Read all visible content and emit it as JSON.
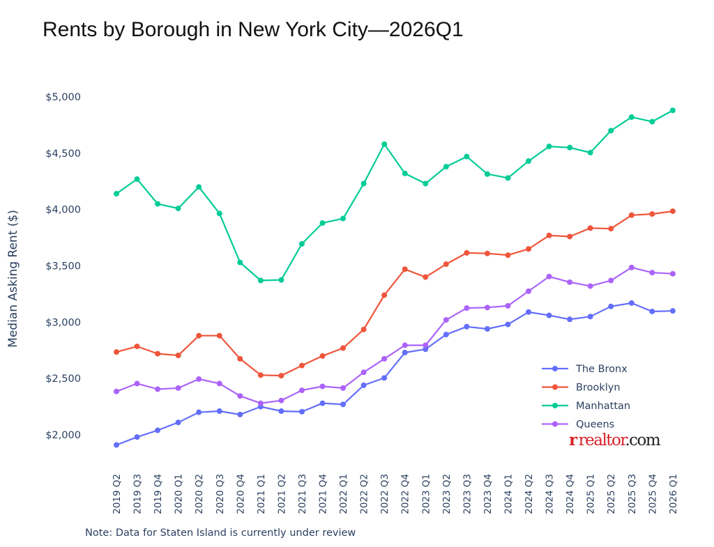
{
  "chart_data": {
    "type": "line",
    "title": "Rents by Borough in New York City—2026Q1",
    "ylabel": "Median Asking Rent ($)",
    "xlabel": "",
    "ylim": [
      1800,
      5100
    ],
    "yticks": [
      2000,
      2500,
      3000,
      3500,
      4000,
      4500,
      5000
    ],
    "ytick_labels": [
      "$2,000",
      "$2,500",
      "$3,000",
      "$3,500",
      "$4,000",
      "$4,500",
      "$5,000"
    ],
    "grid": false,
    "legend_position": "bottom-right",
    "categories": [
      "2019 Q2",
      "2019 Q3",
      "2019 Q4",
      "2020 Q1",
      "2020 Q2",
      "2020 Q3",
      "2020 Q4",
      "2021 Q1",
      "2021 Q2",
      "2021 Q3",
      "2021 Q4",
      "2022 Q1",
      "2022 Q2",
      "2022 Q3",
      "2022 Q4",
      "2023 Q1",
      "2023 Q2",
      "2023 Q3",
      "2023 Q4",
      "2024 Q1",
      "2024 Q2",
      "2024 Q3",
      "2024 Q4",
      "2025 Q1",
      "2025 Q2",
      "2025 Q3",
      "2025 Q4",
      "2026 Q1"
    ],
    "series": [
      {
        "name": "The Bronx",
        "color": "#636efa",
        "values": [
          1910,
          1980,
          2040,
          2110,
          2200,
          2210,
          2180,
          2250,
          2210,
          2205,
          2280,
          2270,
          2440,
          2505,
          2730,
          2760,
          2890,
          2960,
          2940,
          2980,
          3090,
          3060,
          3025,
          3050,
          3140,
          3170,
          3095,
          3100
        ]
      },
      {
        "name": "Brooklyn",
        "color": "#ef553b",
        "values": [
          2735,
          2785,
          2720,
          2705,
          2880,
          2880,
          2675,
          2530,
          2525,
          2615,
          2700,
          2770,
          2935,
          3240,
          3470,
          3400,
          3515,
          3615,
          3610,
          3595,
          3650,
          3770,
          3760,
          3835,
          3830,
          3950,
          3960,
          3985
        ]
      },
      {
        "name": "Manhattan",
        "color": "#00cc96",
        "values": [
          4140,
          4270,
          4050,
          4010,
          4200,
          3965,
          3530,
          3370,
          3375,
          3695,
          3880,
          3920,
          4230,
          4580,
          4320,
          4230,
          4380,
          4470,
          4315,
          4280,
          4430,
          4560,
          4550,
          4505,
          4700,
          4820,
          4780,
          4880
        ]
      },
      {
        "name": "Queens",
        "color": "#ab63fa",
        "values": [
          2385,
          2455,
          2405,
          2415,
          2495,
          2455,
          2345,
          2280,
          2305,
          2395,
          2430,
          2415,
          2555,
          2675,
          2795,
          2795,
          3020,
          3125,
          3130,
          3145,
          3275,
          3405,
          3355,
          3320,
          3370,
          3485,
          3440,
          3430
        ]
      }
    ]
  },
  "note": "Note: Data for Staten Island is currently under review",
  "logo": {
    "mark": "r",
    "brand": "realtor",
    "tld": ".com"
  }
}
